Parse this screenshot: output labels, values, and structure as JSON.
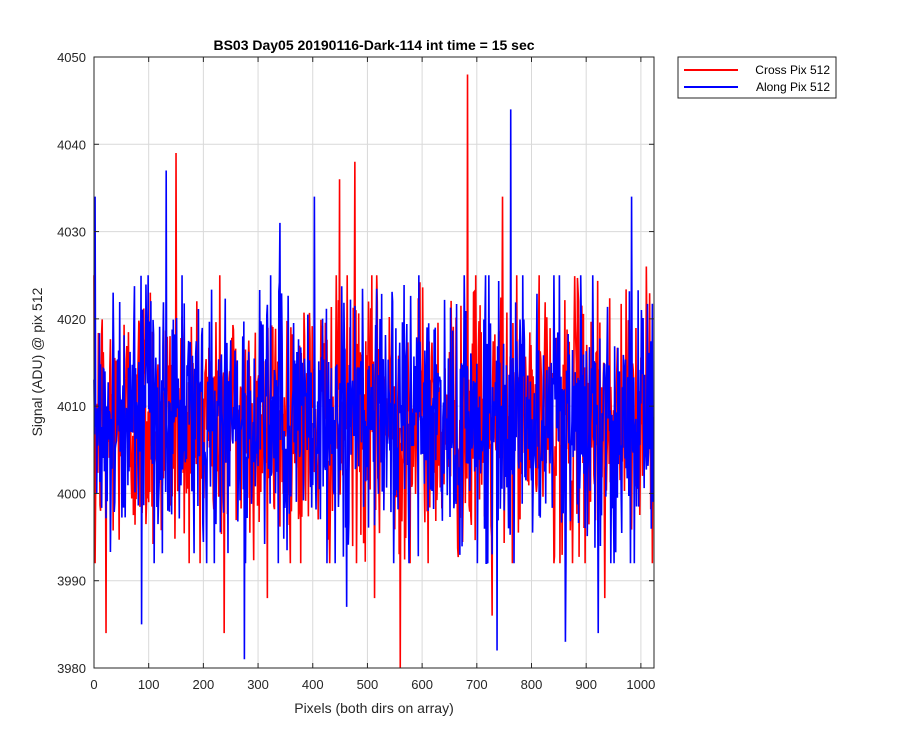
{
  "figure": {
    "background": "#ffffff",
    "axes_color": "#262626",
    "grid_color": "#d9d9d9"
  },
  "chart_data": {
    "type": "line",
    "title": "BS03 Day05 20190116-Dark-114 int time = 15 sec",
    "xlabel": "Pixels (both dirs on array)",
    "ylabel": "Signal (ADU) @ pix 512",
    "xlim": [
      0,
      1024
    ],
    "ylim": [
      3980,
      4050
    ],
    "xticks": [
      0,
      100,
      200,
      300,
      400,
      500,
      600,
      700,
      800,
      900,
      1000
    ],
    "yticks": [
      3980,
      3990,
      4000,
      4010,
      4020,
      4030,
      4040,
      4050
    ],
    "grid": true,
    "legend_placement": "outside top-right",
    "noise_spec": {
      "n_points": 1024,
      "mean": 4008.5,
      "typical_range": [
        3993,
        4024
      ]
    },
    "series": [
      {
        "name": "Cross Pix 512",
        "color": "#ff0000",
        "mean": 4008.5,
        "seed": 12345,
        "extremes": [
          {
            "x": 2,
            "y": 3992
          },
          {
            "x": 22,
            "y": 3984
          },
          {
            "x": 103,
            "y": 4023
          },
          {
            "x": 150,
            "y": 4039
          },
          {
            "x": 238,
            "y": 3984
          },
          {
            "x": 317,
            "y": 3988
          },
          {
            "x": 449,
            "y": 4036
          },
          {
            "x": 477,
            "y": 4038
          },
          {
            "x": 513,
            "y": 3988
          },
          {
            "x": 560,
            "y": 3980
          },
          {
            "x": 683,
            "y": 4048
          },
          {
            "x": 728,
            "y": 3986
          },
          {
            "x": 747,
            "y": 4034
          },
          {
            "x": 934,
            "y": 3988
          },
          {
            "x": 1010,
            "y": 4026
          }
        ]
      },
      {
        "name": "Along Pix 512",
        "color": "#0000ff",
        "mean": 4008.5,
        "seed": 67890,
        "extremes": [
          {
            "x": 2,
            "y": 4034
          },
          {
            "x": 87,
            "y": 3985
          },
          {
            "x": 132,
            "y": 4037
          },
          {
            "x": 275,
            "y": 3981
          },
          {
            "x": 340,
            "y": 4031
          },
          {
            "x": 403,
            "y": 4034
          },
          {
            "x": 462,
            "y": 3987
          },
          {
            "x": 737,
            "y": 3982
          },
          {
            "x": 762,
            "y": 4044
          },
          {
            "x": 862,
            "y": 3983
          },
          {
            "x": 922,
            "y": 3984
          },
          {
            "x": 983,
            "y": 4034
          }
        ]
      }
    ]
  }
}
